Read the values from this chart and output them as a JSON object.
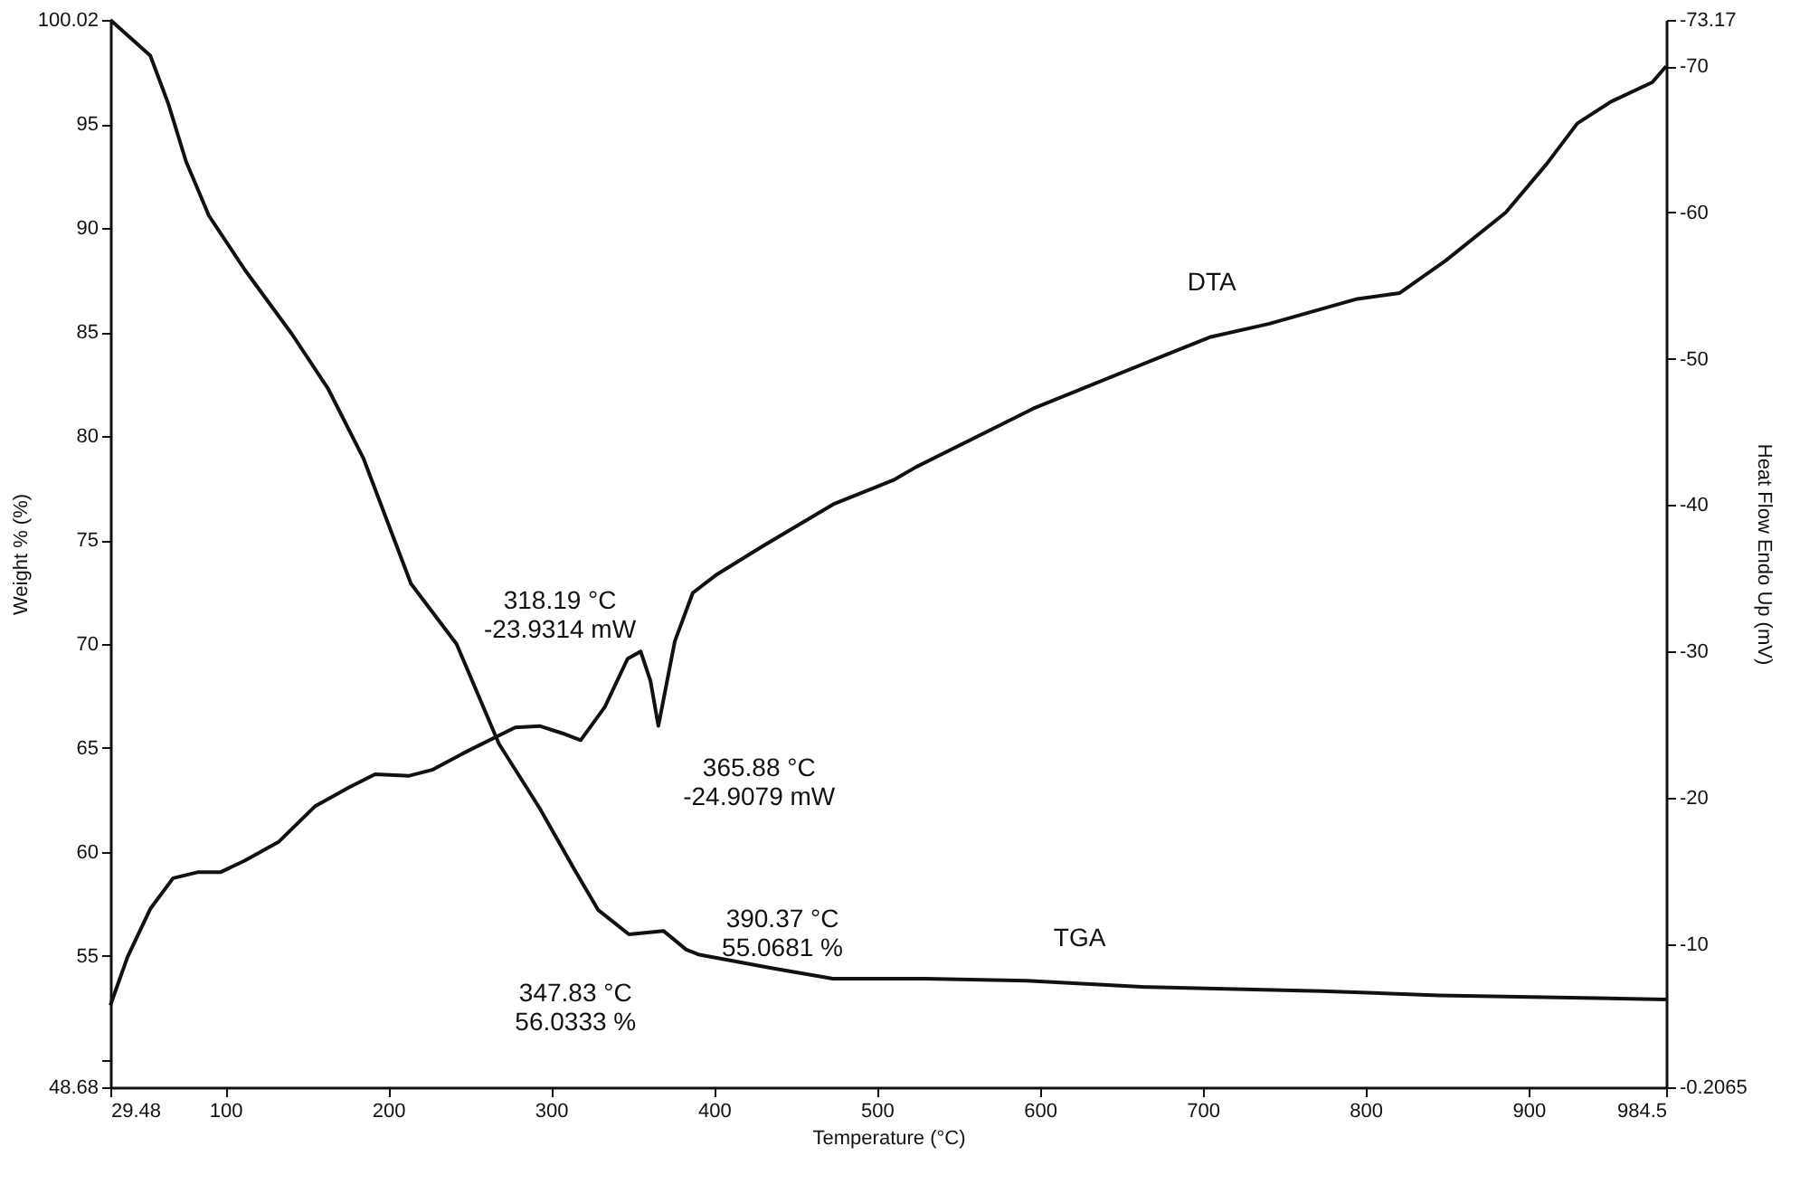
{
  "chart_data": {
    "type": "line",
    "xlabel": "Temperature (°C)",
    "ylabel": "Weight % (%)",
    "y2label": "Heat Flow Endo Up (mV)",
    "xlim": [
      29.48,
      984.5
    ],
    "xticks": [
      29.48,
      100,
      200,
      300,
      400,
      500,
      600,
      700,
      800,
      900,
      984.5
    ],
    "ylim": [
      48.68,
      100.02
    ],
    "yticks": [
      48.68,
      {
        "value": 50,
        "label": null
      },
      55,
      60,
      65,
      70,
      75,
      80,
      85,
      90,
      95,
      100.02
    ],
    "y2lim": [
      -0.2065,
      -73.17
    ],
    "y2ticks": [
      -73.17,
      -70,
      -60,
      -50,
      -40,
      -30,
      -20,
      -10,
      -0.2065
    ],
    "grid": false,
    "marker": "none",
    "line_style": "solid",
    "series": [
      {
        "color": "#111111",
        "x": [
          29.48,
          54,
          65,
          76,
          90,
          112,
          141,
          163,
          185,
          199,
          214,
          242,
          268,
          293,
          314,
          329,
          347.83,
          369,
          383,
          390.37,
          436,
          473,
          530,
          592,
          665,
          773,
          845,
          984.5
        ],
        "values": [
          100.02,
          98.3,
          96.0,
          93.2,
          90.6,
          88.0,
          84.9,
          82.3,
          78.9,
          76.0,
          72.9,
          70.0,
          65.2,
          62.1,
          59.2,
          57.2,
          56.0333,
          56.2,
          55.3,
          55.0681,
          54.4,
          53.9,
          53.9,
          53.8,
          53.5,
          53.3,
          53.1,
          52.9
        ]
      },
      {
        "color": "#111111",
        "axis": "y2",
        "x": [
          29.48,
          40,
          54,
          68,
          83,
          97,
          112,
          133,
          155,
          176,
          192,
          213,
          227,
          249,
          278,
          293,
          307,
          318.19,
          333,
          347,
          355,
          361,
          365.88,
          376,
          387,
          401,
          430,
          474,
          510,
          524,
          596,
          669,
          705,
          741,
          795,
          821,
          849,
          886,
          911,
          930,
          951,
          976,
          984.5
        ],
        "values": [
          -5.8,
          -9.1,
          -12.4,
          -14.5,
          -14.9,
          -14.9,
          -15.7,
          -17.0,
          -19.4,
          -20.7,
          -21.6,
          -21.5,
          -21.9,
          -23.2,
          -24.8,
          -24.9,
          -24.4,
          -23.9314,
          -26.2,
          -29.5,
          -30.0,
          -28.0,
          -24.9079,
          -30.7,
          -34.0,
          -35.2,
          -37.2,
          -40.1,
          -41.7,
          -42.6,
          -46.6,
          -49.9,
          -51.5,
          -52.4,
          -54.1,
          -54.5,
          -56.7,
          -60.0,
          -63.3,
          -66.1,
          -67.6,
          -68.9,
          -70.0
        ]
      }
    ],
    "annotations": [
      "318.19 °C\n-23.9314 mW",
      "365.88 °C\n-24.9079 mW",
      "347.83 °C\n56.0333 %",
      "390.37 °C\n55.0681 %",
      "DTA",
      "TGA"
    ]
  }
}
